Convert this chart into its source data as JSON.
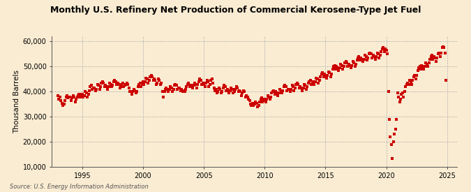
{
  "title": "Monthly U.S. Refinery Net Production of Commercial Kerosene-Type Jet Fuel",
  "ylabel": "Thousand Barrels",
  "source": "Source: U.S. Energy Information Administration",
  "background_color": "#faecd2",
  "dot_color": "#cc0000",
  "ylim": [
    10000,
    62000
  ],
  "xlim_start": 1992.5,
  "xlim_end": 2025.8,
  "yticks": [
    10000,
    20000,
    30000,
    40000,
    50000,
    60000
  ],
  "ytick_labels": [
    "10,000",
    "20,000",
    "30,000",
    "40,000",
    "50,000",
    "60,000"
  ],
  "xticks": [
    1995,
    2000,
    2005,
    2010,
    2015,
    2020,
    2025
  ],
  "data": [
    [
      1993.0,
      38500
    ],
    [
      1993.083,
      37000
    ],
    [
      1993.167,
      37800
    ],
    [
      1993.25,
      36500
    ],
    [
      1993.333,
      35500
    ],
    [
      1993.417,
      34500
    ],
    [
      1993.5,
      35000
    ],
    [
      1993.583,
      36500
    ],
    [
      1993.667,
      38000
    ],
    [
      1993.75,
      38500
    ],
    [
      1993.833,
      37500
    ],
    [
      1993.917,
      38000
    ],
    [
      1994.0,
      38000
    ],
    [
      1994.083,
      36500
    ],
    [
      1994.167,
      37500
    ],
    [
      1994.25,
      38500
    ],
    [
      1994.333,
      38000
    ],
    [
      1994.417,
      36000
    ],
    [
      1994.5,
      37000
    ],
    [
      1994.583,
      38000
    ],
    [
      1994.667,
      38500
    ],
    [
      1994.75,
      39000
    ],
    [
      1994.833,
      38000
    ],
    [
      1994.917,
      39000
    ],
    [
      1995.0,
      39000
    ],
    [
      1995.083,
      38000
    ],
    [
      1995.167,
      38500
    ],
    [
      1995.25,
      40000
    ],
    [
      1995.333,
      39500
    ],
    [
      1995.417,
      38000
    ],
    [
      1995.5,
      39000
    ],
    [
      1995.583,
      40500
    ],
    [
      1995.667,
      42000
    ],
    [
      1995.75,
      42500
    ],
    [
      1995.833,
      41000
    ],
    [
      1995.917,
      41500
    ],
    [
      1996.0,
      41500
    ],
    [
      1996.083,
      40500
    ],
    [
      1996.167,
      41000
    ],
    [
      1996.25,
      43000
    ],
    [
      1996.333,
      42500
    ],
    [
      1996.417,
      41000
    ],
    [
      1996.5,
      42000
    ],
    [
      1996.583,
      43500
    ],
    [
      1996.667,
      44000
    ],
    [
      1996.75,
      43500
    ],
    [
      1996.833,
      42000
    ],
    [
      1996.917,
      42500
    ],
    [
      1997.0,
      42000
    ],
    [
      1997.083,
      41000
    ],
    [
      1997.167,
      42000
    ],
    [
      1997.25,
      43500
    ],
    [
      1997.333,
      43000
    ],
    [
      1997.417,
      42000
    ],
    [
      1997.5,
      42500
    ],
    [
      1997.583,
      44000
    ],
    [
      1997.667,
      44500
    ],
    [
      1997.75,
      44000
    ],
    [
      1997.833,
      43000
    ],
    [
      1997.917,
      43500
    ],
    [
      1998.0,
      43000
    ],
    [
      1998.083,
      41500
    ],
    [
      1998.167,
      42000
    ],
    [
      1998.25,
      43000
    ],
    [
      1998.333,
      43500
    ],
    [
      1998.417,
      42000
    ],
    [
      1998.5,
      42500
    ],
    [
      1998.583,
      43000
    ],
    [
      1998.667,
      43500
    ],
    [
      1998.75,
      43000
    ],
    [
      1998.833,
      41500
    ],
    [
      1998.917,
      40000
    ],
    [
      1999.0,
      40000
    ],
    [
      1999.083,
      39000
    ],
    [
      1999.167,
      40000
    ],
    [
      1999.25,
      41000
    ],
    [
      1999.333,
      40500
    ],
    [
      1999.417,
      39500
    ],
    [
      1999.5,
      40000
    ],
    [
      1999.583,
      42000
    ],
    [
      1999.667,
      43000
    ],
    [
      1999.75,
      43500
    ],
    [
      1999.833,
      42000
    ],
    [
      1999.917,
      43000
    ],
    [
      2000.0,
      44000
    ],
    [
      2000.083,
      43000
    ],
    [
      2000.167,
      44000
    ],
    [
      2000.25,
      45500
    ],
    [
      2000.333,
      45000
    ],
    [
      2000.417,
      43500
    ],
    [
      2000.5,
      44500
    ],
    [
      2000.583,
      46000
    ],
    [
      2000.667,
      46500
    ],
    [
      2000.75,
      46000
    ],
    [
      2000.833,
      44500
    ],
    [
      2000.917,
      45000
    ],
    [
      2001.0,
      44500
    ],
    [
      2001.083,
      43000
    ],
    [
      2001.167,
      43500
    ],
    [
      2001.25,
      45000
    ],
    [
      2001.333,
      44500
    ],
    [
      2001.417,
      43000
    ],
    [
      2001.5,
      43500
    ],
    [
      2001.583,
      40000
    ],
    [
      2001.667,
      38000
    ],
    [
      2001.75,
      40000
    ],
    [
      2001.833,
      41000
    ],
    [
      2001.917,
      41500
    ],
    [
      2002.0,
      41000
    ],
    [
      2002.083,
      40000
    ],
    [
      2002.167,
      41000
    ],
    [
      2002.25,
      42000
    ],
    [
      2002.333,
      41500
    ],
    [
      2002.417,
      40000
    ],
    [
      2002.5,
      41000
    ],
    [
      2002.583,
      42500
    ],
    [
      2002.667,
      43000
    ],
    [
      2002.75,
      42500
    ],
    [
      2002.833,
      41000
    ],
    [
      2002.917,
      41500
    ],
    [
      2003.0,
      41500
    ],
    [
      2003.083,
      40500
    ],
    [
      2003.167,
      41000
    ],
    [
      2003.25,
      40000
    ],
    [
      2003.333,
      40500
    ],
    [
      2003.417,
      40000
    ],
    [
      2003.5,
      41000
    ],
    [
      2003.583,
      42000
    ],
    [
      2003.667,
      43000
    ],
    [
      2003.75,
      43500
    ],
    [
      2003.833,
      42000
    ],
    [
      2003.917,
      42500
    ],
    [
      2004.0,
      42500
    ],
    [
      2004.083,
      41500
    ],
    [
      2004.167,
      42500
    ],
    [
      2004.25,
      43500
    ],
    [
      2004.333,
      43000
    ],
    [
      2004.417,
      41500
    ],
    [
      2004.5,
      43000
    ],
    [
      2004.583,
      44000
    ],
    [
      2004.667,
      45000
    ],
    [
      2004.75,
      44500
    ],
    [
      2004.833,
      43000
    ],
    [
      2004.917,
      43500
    ],
    [
      2005.0,
      43000
    ],
    [
      2005.083,
      42000
    ],
    [
      2005.167,
      43500
    ],
    [
      2005.25,
      44500
    ],
    [
      2005.333,
      44000
    ],
    [
      2005.417,
      42000
    ],
    [
      2005.5,
      43000
    ],
    [
      2005.583,
      44500
    ],
    [
      2005.667,
      45000
    ],
    [
      2005.75,
      43500
    ],
    [
      2005.833,
      41500
    ],
    [
      2005.917,
      40500
    ],
    [
      2006.0,
      41000
    ],
    [
      2006.083,
      39500
    ],
    [
      2006.167,
      40000
    ],
    [
      2006.25,
      41500
    ],
    [
      2006.333,
      41000
    ],
    [
      2006.417,
      39500
    ],
    [
      2006.5,
      40000
    ],
    [
      2006.583,
      41500
    ],
    [
      2006.667,
      42500
    ],
    [
      2006.75,
      42000
    ],
    [
      2006.833,
      40500
    ],
    [
      2006.917,
      41000
    ],
    [
      2007.0,
      40500
    ],
    [
      2007.083,
      39500
    ],
    [
      2007.167,
      40500
    ],
    [
      2007.25,
      41500
    ],
    [
      2007.333,
      41000
    ],
    [
      2007.417,
      39500
    ],
    [
      2007.5,
      40000
    ],
    [
      2007.583,
      41000
    ],
    [
      2007.667,
      42000
    ],
    [
      2007.75,
      41500
    ],
    [
      2007.833,
      40000
    ],
    [
      2007.917,
      40500
    ],
    [
      2008.0,
      40000
    ],
    [
      2008.083,
      38500
    ],
    [
      2008.167,
      39500
    ],
    [
      2008.25,
      40500
    ],
    [
      2008.333,
      40000
    ],
    [
      2008.417,
      38000
    ],
    [
      2008.5,
      38500
    ],
    [
      2008.583,
      38000
    ],
    [
      2008.667,
      37000
    ],
    [
      2008.75,
      36500
    ],
    [
      2008.833,
      35000
    ],
    [
      2008.917,
      34500
    ],
    [
      2009.0,
      35500
    ],
    [
      2009.083,
      34500
    ],
    [
      2009.167,
      35000
    ],
    [
      2009.25,
      36000
    ],
    [
      2009.333,
      35500
    ],
    [
      2009.417,
      34000
    ],
    [
      2009.5,
      34500
    ],
    [
      2009.583,
      36000
    ],
    [
      2009.667,
      37000
    ],
    [
      2009.75,
      37500
    ],
    [
      2009.833,
      36000
    ],
    [
      2009.917,
      36500
    ],
    [
      2010.0,
      37000
    ],
    [
      2010.083,
      36000
    ],
    [
      2010.167,
      37000
    ],
    [
      2010.25,
      38500
    ],
    [
      2010.333,
      38000
    ],
    [
      2010.417,
      37000
    ],
    [
      2010.5,
      38000
    ],
    [
      2010.583,
      39500
    ],
    [
      2010.667,
      40000
    ],
    [
      2010.75,
      40500
    ],
    [
      2010.833,
      39000
    ],
    [
      2010.917,
      40000
    ],
    [
      2011.0,
      39500
    ],
    [
      2011.083,
      38500
    ],
    [
      2011.167,
      39500
    ],
    [
      2011.25,
      41000
    ],
    [
      2011.333,
      40500
    ],
    [
      2011.417,
      39500
    ],
    [
      2011.5,
      40500
    ],
    [
      2011.583,
      42000
    ],
    [
      2011.667,
      42500
    ],
    [
      2011.75,
      42000
    ],
    [
      2011.833,
      40500
    ],
    [
      2011.917,
      41000
    ],
    [
      2012.0,
      41000
    ],
    [
      2012.083,
      40000
    ],
    [
      2012.167,
      41000
    ],
    [
      2012.25,
      42500
    ],
    [
      2012.333,
      42000
    ],
    [
      2012.417,
      40500
    ],
    [
      2012.5,
      41500
    ],
    [
      2012.583,
      43000
    ],
    [
      2012.667,
      43500
    ],
    [
      2012.75,
      43000
    ],
    [
      2012.833,
      41500
    ],
    [
      2012.917,
      42000
    ],
    [
      2013.0,
      41500
    ],
    [
      2013.083,
      40500
    ],
    [
      2013.167,
      41500
    ],
    [
      2013.25,
      43000
    ],
    [
      2013.333,
      42500
    ],
    [
      2013.417,
      41000
    ],
    [
      2013.5,
      42000
    ],
    [
      2013.583,
      43500
    ],
    [
      2013.667,
      44000
    ],
    [
      2013.75,
      44500
    ],
    [
      2013.833,
      43000
    ],
    [
      2013.917,
      44000
    ],
    [
      2014.0,
      43500
    ],
    [
      2014.083,
      43000
    ],
    [
      2014.167,
      44000
    ],
    [
      2014.25,
      45500
    ],
    [
      2014.333,
      45000
    ],
    [
      2014.417,
      43500
    ],
    [
      2014.5,
      44500
    ],
    [
      2014.583,
      46000
    ],
    [
      2014.667,
      47000
    ],
    [
      2014.75,
      47500
    ],
    [
      2014.833,
      46000
    ],
    [
      2014.917,
      47000
    ],
    [
      2015.0,
      46500
    ],
    [
      2015.083,
      45500
    ],
    [
      2015.167,
      46500
    ],
    [
      2015.25,
      48000
    ],
    [
      2015.333,
      47500
    ],
    [
      2015.417,
      46000
    ],
    [
      2015.5,
      47000
    ],
    [
      2015.583,
      49000
    ],
    [
      2015.667,
      50000
    ],
    [
      2015.75,
      50500
    ],
    [
      2015.833,
      49000
    ],
    [
      2015.917,
      50000
    ],
    [
      2016.0,
      49500
    ],
    [
      2016.083,
      48500
    ],
    [
      2016.167,
      49500
    ],
    [
      2016.25,
      51000
    ],
    [
      2016.333,
      50500
    ],
    [
      2016.417,
      49000
    ],
    [
      2016.5,
      50000
    ],
    [
      2016.583,
      51500
    ],
    [
      2016.667,
      52000
    ],
    [
      2016.75,
      51500
    ],
    [
      2016.833,
      50000
    ],
    [
      2016.917,
      51000
    ],
    [
      2017.0,
      50500
    ],
    [
      2017.083,
      49500
    ],
    [
      2017.167,
      50500
    ],
    [
      2017.25,
      52000
    ],
    [
      2017.333,
      51500
    ],
    [
      2017.417,
      50000
    ],
    [
      2017.5,
      51000
    ],
    [
      2017.583,
      52500
    ],
    [
      2017.667,
      53500
    ],
    [
      2017.75,
      54000
    ],
    [
      2017.833,
      52500
    ],
    [
      2017.917,
      53500
    ],
    [
      2018.0,
      53000
    ],
    [
      2018.083,
      52000
    ],
    [
      2018.167,
      53000
    ],
    [
      2018.25,
      54500
    ],
    [
      2018.333,
      54000
    ],
    [
      2018.417,
      52500
    ],
    [
      2018.5,
      53500
    ],
    [
      2018.583,
      55000
    ],
    [
      2018.667,
      55500
    ],
    [
      2018.75,
      55000
    ],
    [
      2018.833,
      53500
    ],
    [
      2018.917,
      54500
    ],
    [
      2019.0,
      54000
    ],
    [
      2019.083,
      53000
    ],
    [
      2019.167,
      54000
    ],
    [
      2019.25,
      55500
    ],
    [
      2019.333,
      55000
    ],
    [
      2019.417,
      53500
    ],
    [
      2019.5,
      54500
    ],
    [
      2019.583,
      56000
    ],
    [
      2019.667,
      57000
    ],
    [
      2019.75,
      57500
    ],
    [
      2019.833,
      56000
    ],
    [
      2019.917,
      57000
    ],
    [
      2020.0,
      56500
    ],
    [
      2020.083,
      55000
    ],
    [
      2020.167,
      40000
    ],
    [
      2020.25,
      29000
    ],
    [
      2020.333,
      22000
    ],
    [
      2020.417,
      19000
    ],
    [
      2020.5,
      13500
    ],
    [
      2020.583,
      20000
    ],
    [
      2020.667,
      23000
    ],
    [
      2020.75,
      25000
    ],
    [
      2020.833,
      29000
    ],
    [
      2020.917,
      39500
    ],
    [
      2021.0,
      38000
    ],
    [
      2021.083,
      36000
    ],
    [
      2021.167,
      37000
    ],
    [
      2021.25,
      39000
    ],
    [
      2021.333,
      39500
    ],
    [
      2021.417,
      38000
    ],
    [
      2021.5,
      40000
    ],
    [
      2021.583,
      42000
    ],
    [
      2021.667,
      43000
    ],
    [
      2021.75,
      43500
    ],
    [
      2021.833,
      43000
    ],
    [
      2021.917,
      44500
    ],
    [
      2022.0,
      44000
    ],
    [
      2022.083,
      43000
    ],
    [
      2022.167,
      44500
    ],
    [
      2022.25,
      46000
    ],
    [
      2022.333,
      46500
    ],
    [
      2022.417,
      45000
    ],
    [
      2022.5,
      46500
    ],
    [
      2022.583,
      48500
    ],
    [
      2022.667,
      49500
    ],
    [
      2022.75,
      50000
    ],
    [
      2022.833,
      49000
    ],
    [
      2022.917,
      50500
    ],
    [
      2023.0,
      50000
    ],
    [
      2023.083,
      49000
    ],
    [
      2023.167,
      50000
    ],
    [
      2023.25,
      51500
    ],
    [
      2023.333,
      51000
    ],
    [
      2023.417,
      50000
    ],
    [
      2023.5,
      51500
    ],
    [
      2023.583,
      53000
    ],
    [
      2023.667,
      54000
    ],
    [
      2023.75,
      54500
    ],
    [
      2023.833,
      53000
    ],
    [
      2023.917,
      54000
    ],
    [
      2024.0,
      53500
    ],
    [
      2024.083,
      52000
    ],
    [
      2024.167,
      53500
    ],
    [
      2024.25,
      55000
    ],
    [
      2024.333,
      55500
    ],
    [
      2024.417,
      54000
    ],
    [
      2024.5,
      55500
    ],
    [
      2024.583,
      57500
    ],
    [
      2024.667,
      58000
    ],
    [
      2024.75,
      57500
    ],
    [
      2024.833,
      55500
    ],
    [
      2024.917,
      44500
    ]
  ]
}
